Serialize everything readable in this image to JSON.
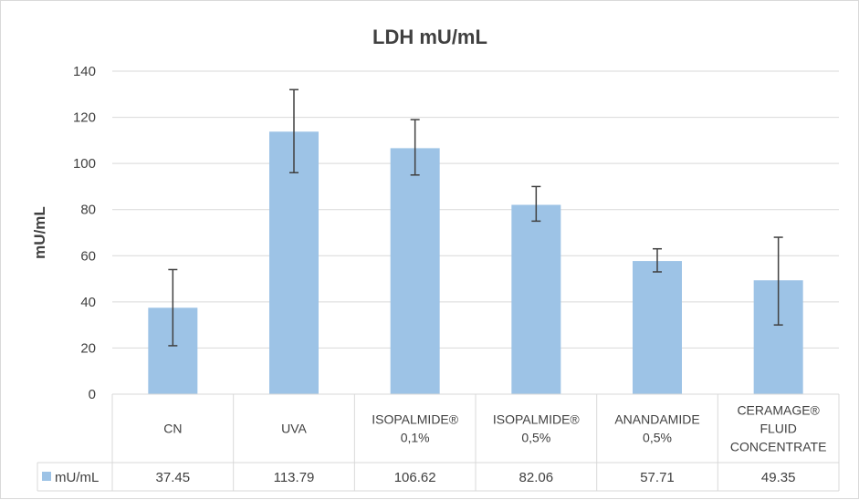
{
  "chart_data": {
    "type": "bar",
    "title": "LDH mU/mL",
    "ylabel": "mU/mL",
    "xlabel": "",
    "ylim": [
      0,
      140
    ],
    "yticks": [
      0,
      20,
      40,
      60,
      80,
      100,
      120,
      140
    ],
    "grid": true,
    "legend_position": "bottom-left (data table)",
    "bar_color": "#9dc3e6",
    "error_bar_color": "#404040",
    "categories": [
      {
        "lines": [
          "CN"
        ]
      },
      {
        "lines": [
          "UVA"
        ]
      },
      {
        "lines": [
          "ISOPALMIDE®",
          "0,1%"
        ]
      },
      {
        "lines": [
          "ISOPALMIDE®",
          "0,5%"
        ]
      },
      {
        "lines": [
          "ANANDAMIDE",
          "0,5%"
        ]
      },
      {
        "lines": [
          "CERAMAGE®",
          "FLUID",
          "CONCENTRATE"
        ]
      }
    ],
    "series": [
      {
        "name": "mU/mL",
        "values": [
          37.45,
          113.79,
          106.62,
          82.06,
          57.71,
          49.35
        ],
        "value_labels": [
          "37.45",
          "113.79",
          "106.62",
          "82.06",
          "57.71",
          "49.35"
        ],
        "error_low": [
          21,
          96,
          95,
          75,
          53,
          30
        ],
        "error_high": [
          54,
          132,
          119,
          90,
          63,
          68
        ]
      }
    ]
  }
}
